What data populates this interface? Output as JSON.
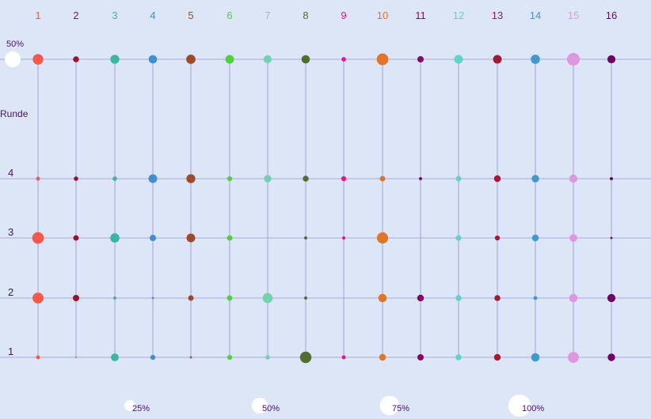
{
  "colors": {
    "background": "#dde6f7",
    "grid": "#9b8fd6",
    "text": "#4b0f6b",
    "legend_bubble": "#ffffff"
  },
  "chart_data": {
    "type": "bubble-grid",
    "ylabel": "Runde",
    "top_scale_label": "50%",
    "columns": [
      {
        "label": "1",
        "color": "#f45a4c"
      },
      {
        "label": "2",
        "color": "#a0102e"
      },
      {
        "label": "3",
        "color": "#3ab5a3"
      },
      {
        "label": "4",
        "color": "#3f8fd0"
      },
      {
        "label": "5",
        "color": "#9c4a28"
      },
      {
        "label": "6",
        "color": "#4fd13d"
      },
      {
        "label": "7",
        "color": "#74d1ad"
      },
      {
        "label": "8",
        "color": "#516e31"
      },
      {
        "label": "9",
        "color": "#f0108e"
      },
      {
        "label": "10",
        "color": "#e07427"
      },
      {
        "label": "11",
        "color": "#820a66"
      },
      {
        "label": "12",
        "color": "#5dd3ca"
      },
      {
        "label": "13",
        "color": "#a31a35"
      },
      {
        "label": "14",
        "color": "#3f99cf"
      },
      {
        "label": "15",
        "color": "#de96df"
      },
      {
        "label": "16",
        "color": "#6d0363"
      }
    ],
    "rows": [
      {
        "label": "",
        "values": [
          22,
          7,
          16,
          14,
          17,
          15,
          13,
          14,
          4,
          27,
          8,
          15,
          15,
          17,
          32,
          13
        ]
      },
      {
        "label": "4",
        "values": [
          3,
          4,
          4,
          15,
          16,
          5,
          11,
          7,
          5,
          6,
          2,
          6,
          9,
          11,
          13,
          2
        ]
      },
      {
        "label": "3",
        "values": [
          27,
          6,
          17,
          8,
          15,
          6,
          0,
          2,
          2,
          25,
          0,
          6,
          5,
          9,
          12,
          1
        ]
      },
      {
        "label": "2",
        "values": [
          24,
          8,
          2,
          1,
          6,
          6,
          20,
          2,
          0,
          14,
          9,
          7,
          7,
          3,
          14,
          13
        ]
      },
      {
        "label": "1",
        "values": [
          3,
          0.3,
          12,
          5,
          1,
          5,
          4,
          26,
          3,
          9,
          8,
          7,
          9,
          14,
          24,
          11
        ]
      }
    ],
    "size_legend": [
      {
        "label": "25%",
        "value": 25
      },
      {
        "label": "50%",
        "value": 50
      },
      {
        "label": "75%",
        "value": 75
      },
      {
        "label": "100%",
        "value": 100
      }
    ]
  }
}
